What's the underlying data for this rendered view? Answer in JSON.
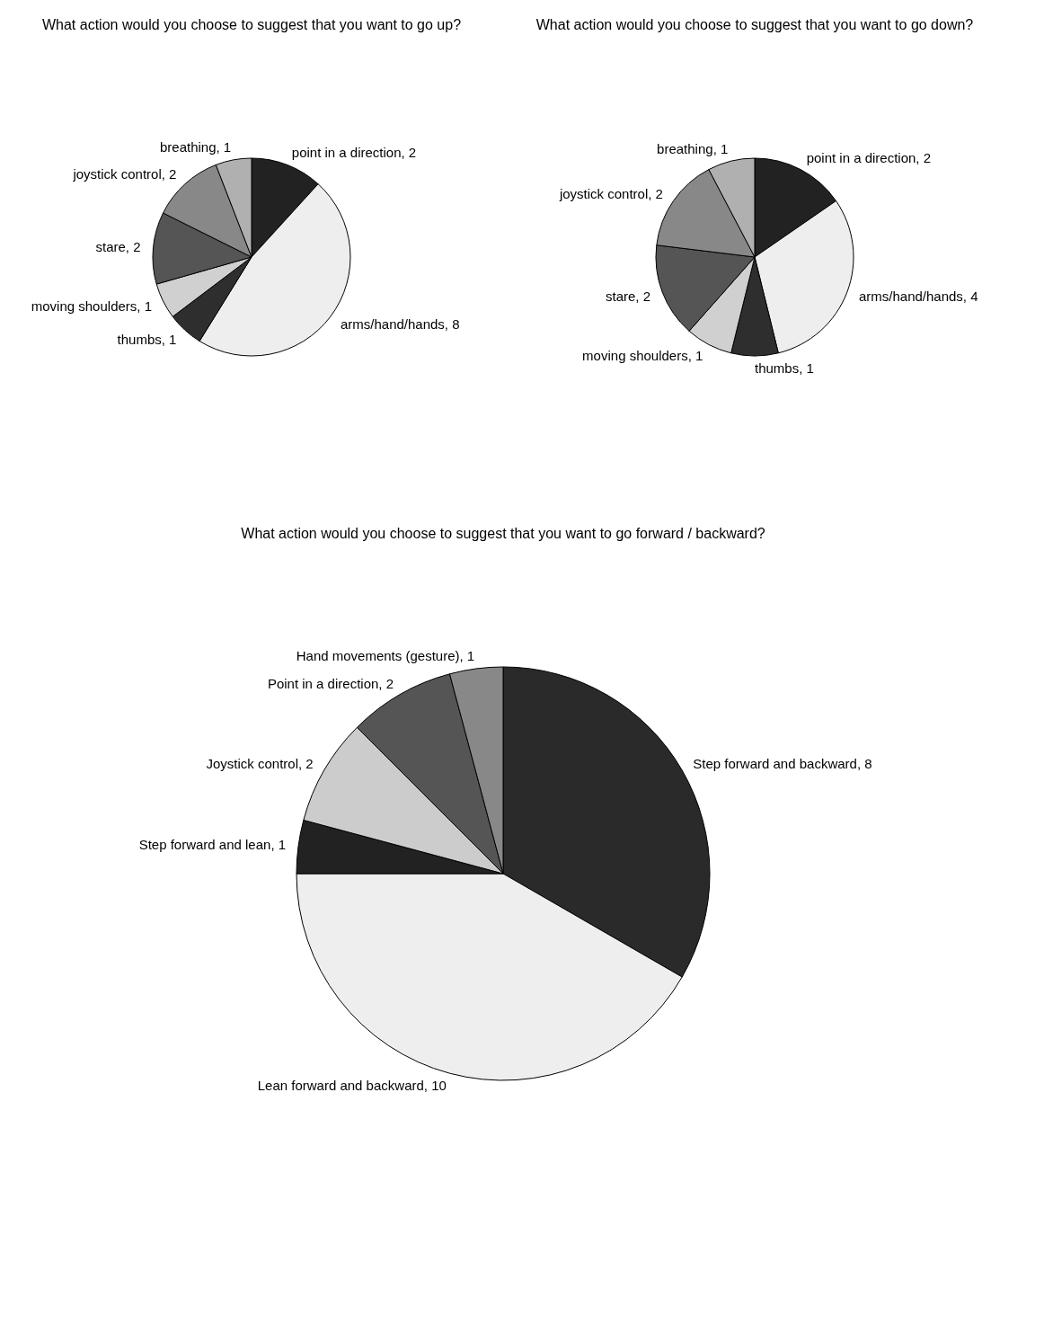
{
  "chart_data": [
    {
      "type": "pie",
      "title": "What action would you choose to suggest that you want to go up?",
      "categories": [
        "point in a direction, 2",
        "arms/hand/hands, 8",
        "thumbs, 1",
        "moving shoulders, 1",
        "stare, 2",
        "joystick control, 2",
        "breathing, 1"
      ],
      "values": [
        2,
        8,
        1,
        1,
        2,
        2,
        1
      ],
      "colors": [
        "#222222",
        "#eeeeee",
        "#2e2e2e",
        "#d0d0d0",
        "#555555",
        "#888888",
        "#b0b0b0"
      ],
      "legend": false
    },
    {
      "type": "pie",
      "title": "What action would you choose to suggest that you want to go down?",
      "categories": [
        "point in a direction, 2",
        "arms/hand/hands, 4",
        "thumbs, 1",
        "moving shoulders, 1",
        "stare, 2",
        "joystick control, 2",
        "breathing, 1"
      ],
      "values": [
        2,
        4,
        1,
        1,
        2,
        2,
        1
      ],
      "colors": [
        "#222222",
        "#eeeeee",
        "#2e2e2e",
        "#d0d0d0",
        "#555555",
        "#888888",
        "#b0b0b0"
      ],
      "legend": false
    },
    {
      "type": "pie",
      "title": "What action would you choose to suggest that you want to go forward / backward?",
      "categories": [
        "Step forward and backward, 8",
        "Lean forward and backward, 10",
        "Step forward and lean, 1",
        "Joystick control, 2",
        "Point in a direction, 2",
        "Hand movements (gesture), 1"
      ],
      "values": [
        8,
        10,
        1,
        2,
        2,
        1
      ],
      "colors": [
        "#2a2a2a",
        "#eeeeee",
        "#222222",
        "#cccccc",
        "#555555",
        "#888888"
      ],
      "legend": false
    }
  ]
}
